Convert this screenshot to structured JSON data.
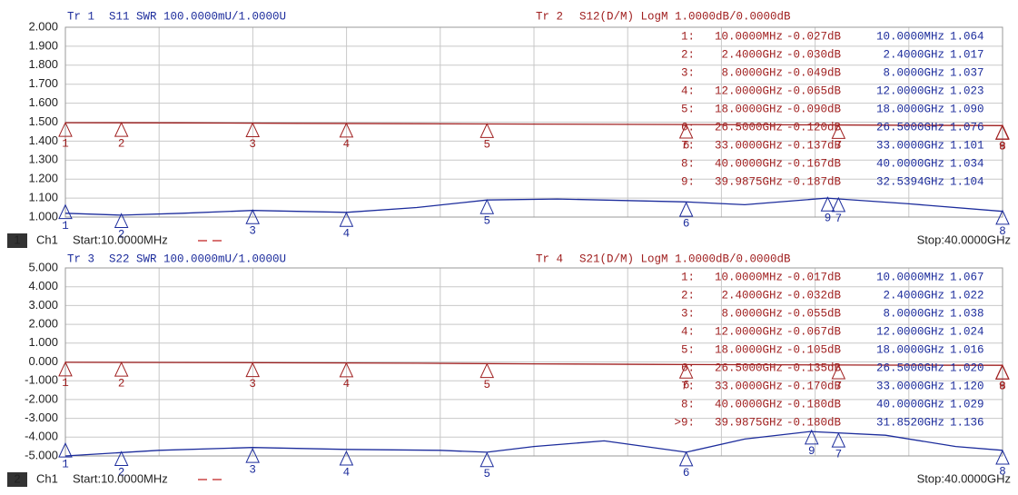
{
  "chart_data": [
    {
      "type": "line",
      "channel": "1",
      "channel_name": "Ch1",
      "start": "Start:10.0000MHz",
      "stop": "Stop:40.0000GHz",
      "xlim": [
        0.01,
        40
      ],
      "ylim": [
        1,
        2
      ],
      "y2lim": [
        -5,
        5
      ],
      "grid": true,
      "yticks": [
        {
          "value": 1,
          "label": "1.000"
        },
        {
          "value": 1.1,
          "label": "1.100"
        },
        {
          "value": 1.2,
          "label": "1.200"
        },
        {
          "value": 1.3,
          "label": "1.300"
        },
        {
          "value": 1.4,
          "label": "1.400"
        },
        {
          "value": 1.5,
          "label": "1.500"
        },
        {
          "value": 1.6,
          "label": "1.600"
        },
        {
          "value": 1.7,
          "label": "1.700"
        },
        {
          "value": 1.8,
          "label": "1.800"
        },
        {
          "value": 1.9,
          "label": "1.900"
        },
        {
          "value": 2,
          "label": "2.000"
        }
      ],
      "series": [
        {
          "trace": "Tr 1",
          "name": "S11 SWR 100.0000mU/1.0000U",
          "color": "#1c2c9c",
          "x": [
            0.01,
            2.4,
            5,
            8,
            12,
            15,
            18,
            21,
            26.5,
            29,
            32.5,
            36,
            40
          ],
          "values": [
            1.02,
            1.01,
            1.02,
            1.035,
            1.025,
            1.05,
            1.09,
            1.095,
            1.08,
            1.065,
            1.1,
            1.07,
            1.03
          ]
        },
        {
          "trace": "Tr 2",
          "name": "S12(D/M) LogM 1.0000dB/0.0000dB",
          "color": "#a02020",
          "axis": "y2",
          "x": [
            0.01,
            5,
            10,
            15,
            20,
            25,
            30,
            35,
            40
          ],
          "values": [
            -0.03,
            -0.04,
            -0.06,
            -0.08,
            -0.1,
            -0.12,
            -0.14,
            -0.16,
            -0.18
          ]
        }
      ],
      "markers": {
        "rows": [
          "1:",
          "2:",
          "3:",
          "4:",
          "5:",
          "6:",
          "7:",
          "8:",
          "9:"
        ],
        "sets": [
          {
            "ids": [
              "1",
              "2",
              "3",
              "4",
              "5",
              "6",
              "7",
              "8",
              "9"
            ],
            "x": [
              0.01,
              2.4,
              8,
              12,
              18,
              26.5,
              33,
              40,
              32.5394
            ],
            "x_labels": [
              "10.0000MHz",
              "2.4000GHz",
              "8.0000GHz",
              "12.0000GHz",
              "18.0000GHz",
              "26.5000GHz",
              "33.0000GHz",
              "40.0000GHz",
              "32.5394GHz"
            ],
            "values": [
              1.064,
              1.017,
              1.037,
              1.023,
              1.09,
              1.076,
              1.101,
              1.034,
              1.104
            ],
            "value_labels": [
              "1.064",
              "1.017",
              "1.037",
              "1.023",
              "1.090",
              "1.076",
              "1.101",
              "1.034",
              "1.104"
            ]
          },
          {
            "ids": [
              "1",
              "2",
              "3",
              "4",
              "5",
              "6",
              "7",
              "8",
              "9"
            ],
            "x": [
              0.01,
              2.4,
              8,
              12,
              18,
              26.5,
              33,
              40,
              39.9875
            ],
            "x_labels": [
              "10.0000MHz",
              "2.4000GHz",
              "8.0000GHz",
              "12.0000GHz",
              "18.0000GHz",
              "26.5000GHz",
              "33.0000GHz",
              "40.0000GHz",
              "39.9875GHz"
            ],
            "values": [
              -0.027,
              -0.03,
              -0.049,
              -0.065,
              -0.09,
              -0.12,
              -0.137,
              -0.167,
              -0.187
            ],
            "value_labels": [
              "-0.027dB",
              "-0.030dB",
              "-0.049dB",
              "-0.065dB",
              "-0.090dB",
              "-0.120dB",
              "-0.137dB",
              "-0.167dB",
              "-0.187dB"
            ]
          }
        ]
      }
    },
    {
      "type": "line",
      "channel": "2",
      "channel_name": "Ch1",
      "start": "Start:10.0000MHz",
      "stop": "Stop:40.0000GHz",
      "xlim": [
        0.01,
        40
      ],
      "ylim": [
        -5,
        5
      ],
      "y2lim": [
        1,
        2
      ],
      "grid": true,
      "yticks": [
        {
          "value": -5,
          "label": "-5.000"
        },
        {
          "value": -4,
          "label": "-4.000"
        },
        {
          "value": -3,
          "label": "-3.000"
        },
        {
          "value": -2,
          "label": "-2.000"
        },
        {
          "value": -1,
          "label": "-1.000"
        },
        {
          "value": 0,
          "label": "0.000"
        },
        {
          "value": 1,
          "label": "1.000"
        },
        {
          "value": 2,
          "label": "2.000"
        },
        {
          "value": 3,
          "label": "3.000"
        },
        {
          "value": 4,
          "label": "4.000"
        },
        {
          "value": 5,
          "label": "5.000"
        }
      ],
      "series": [
        {
          "trace": "Tr 3",
          "name": "S22 SWR 100.0000mU/1.0000U",
          "color": "#1c2c9c",
          "axis": "y2",
          "x": [
            0.01,
            4,
            8,
            12,
            16,
            18,
            20,
            23,
            26.5,
            29,
            31.8,
            35,
            38,
            40
          ],
          "values": [
            1.0,
            1.03,
            1.045,
            1.035,
            1.03,
            1.02,
            1.05,
            1.08,
            1.02,
            1.09,
            1.13,
            1.11,
            1.05,
            1.03
          ]
        },
        {
          "trace": "Tr 4",
          "name": "S21(D/M) LogM 1.0000dB/0.0000dB",
          "color": "#a02020",
          "x": [
            0.01,
            5,
            10,
            15,
            20,
            25,
            30,
            35,
            40
          ],
          "values": [
            -0.02,
            -0.03,
            -0.05,
            -0.07,
            -0.1,
            -0.13,
            -0.15,
            -0.17,
            -0.18
          ]
        }
      ],
      "markers": {
        "rows": [
          "1:",
          "2:",
          "3:",
          "4:",
          "5:",
          "6:",
          "7:",
          "8:",
          ">9:"
        ],
        "sets": [
          {
            "ids": [
              "1",
              "2",
              "3",
              "4",
              "5",
              "6",
              "7",
              "8",
              "9"
            ],
            "x": [
              0.01,
              2.4,
              8,
              12,
              18,
              26.5,
              33,
              40,
              31.852
            ],
            "x_labels": [
              "10.0000MHz",
              "2.4000GHz",
              "8.0000GHz",
              "12.0000GHz",
              "18.0000GHz",
              "26.5000GHz",
              "33.0000GHz",
              "40.0000GHz",
              "31.8520GHz"
            ],
            "values": [
              1.067,
              1.022,
              1.038,
              1.024,
              1.016,
              1.02,
              1.12,
              1.029,
              1.136
            ],
            "value_labels": [
              "1.067",
              "1.022",
              "1.038",
              "1.024",
              "1.016",
              "1.020",
              "1.120",
              "1.029",
              "1.136"
            ]
          },
          {
            "ids": [
              "1",
              "2",
              "3",
              "4",
              "5",
              "6",
              "7",
              "8",
              "9"
            ],
            "x": [
              0.01,
              2.4,
              8,
              12,
              18,
              26.5,
              33,
              40,
              39.9875
            ],
            "x_labels": [
              "10.0000MHz",
              "2.4000GHz",
              "8.0000GHz",
              "12.0000GHz",
              "18.0000GHz",
              "26.5000GHz",
              "33.0000GHz",
              "40.0000GHz",
              "39.9875GHz"
            ],
            "values": [
              -0.017,
              -0.032,
              -0.055,
              -0.067,
              -0.105,
              -0.135,
              -0.17,
              -0.18,
              -0.18
            ],
            "value_labels": [
              "-0.017dB",
              "-0.032dB",
              "-0.055dB",
              "-0.067dB",
              "-0.105dB",
              "-0.135dB",
              "-0.170dB",
              "-0.180dB",
              "-0.180dB"
            ]
          }
        ]
      }
    }
  ]
}
